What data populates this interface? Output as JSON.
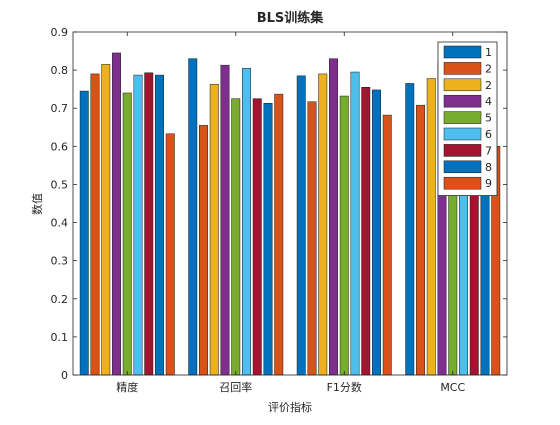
{
  "chart_data": {
    "type": "bar",
    "title": "BLS训练集",
    "xlabel": "评价指标",
    "ylabel": "数值",
    "categories": [
      "精度",
      "召回率",
      "F1分数",
      "MCC"
    ],
    "ylim": [
      0,
      0.9
    ],
    "yticks": [
      "0",
      "0.1",
      "0.2",
      "0.3",
      "0.4",
      "0.5",
      "0.6",
      "0.7",
      "0.8",
      "0.9"
    ],
    "grid": false,
    "legend_position": "top-right",
    "series": [
      {
        "name": "1",
        "color": "#0072bd",
        "values": [
          0.745,
          0.83,
          0.785,
          0.765
        ]
      },
      {
        "name": "2",
        "color": "#d95319",
        "values": [
          0.79,
          0.655,
          0.717,
          0.708
        ]
      },
      {
        "name": "2",
        "color": "#edb120",
        "values": [
          0.815,
          0.763,
          0.79,
          0.778
        ]
      },
      {
        "name": "4",
        "color": "#7e2f8e",
        "values": [
          0.845,
          0.813,
          0.83,
          0.82
        ]
      },
      {
        "name": "5",
        "color": "#77ac30",
        "values": [
          0.74,
          0.725,
          0.732,
          0.73
        ]
      },
      {
        "name": "6",
        "color": "#4dbeee",
        "values": [
          0.787,
          0.805,
          0.795,
          0.79
        ]
      },
      {
        "name": "7",
        "color": "#a2142f",
        "values": [
          0.793,
          0.725,
          0.755,
          0.75
        ]
      },
      {
        "name": "8",
        "color": "#0072bd",
        "values": [
          0.787,
          0.713,
          0.748,
          0.74
        ]
      },
      {
        "name": "9",
        "color": "#d95319",
        "values": [
          0.633,
          0.737,
          0.682,
          0.6
        ]
      }
    ]
  }
}
